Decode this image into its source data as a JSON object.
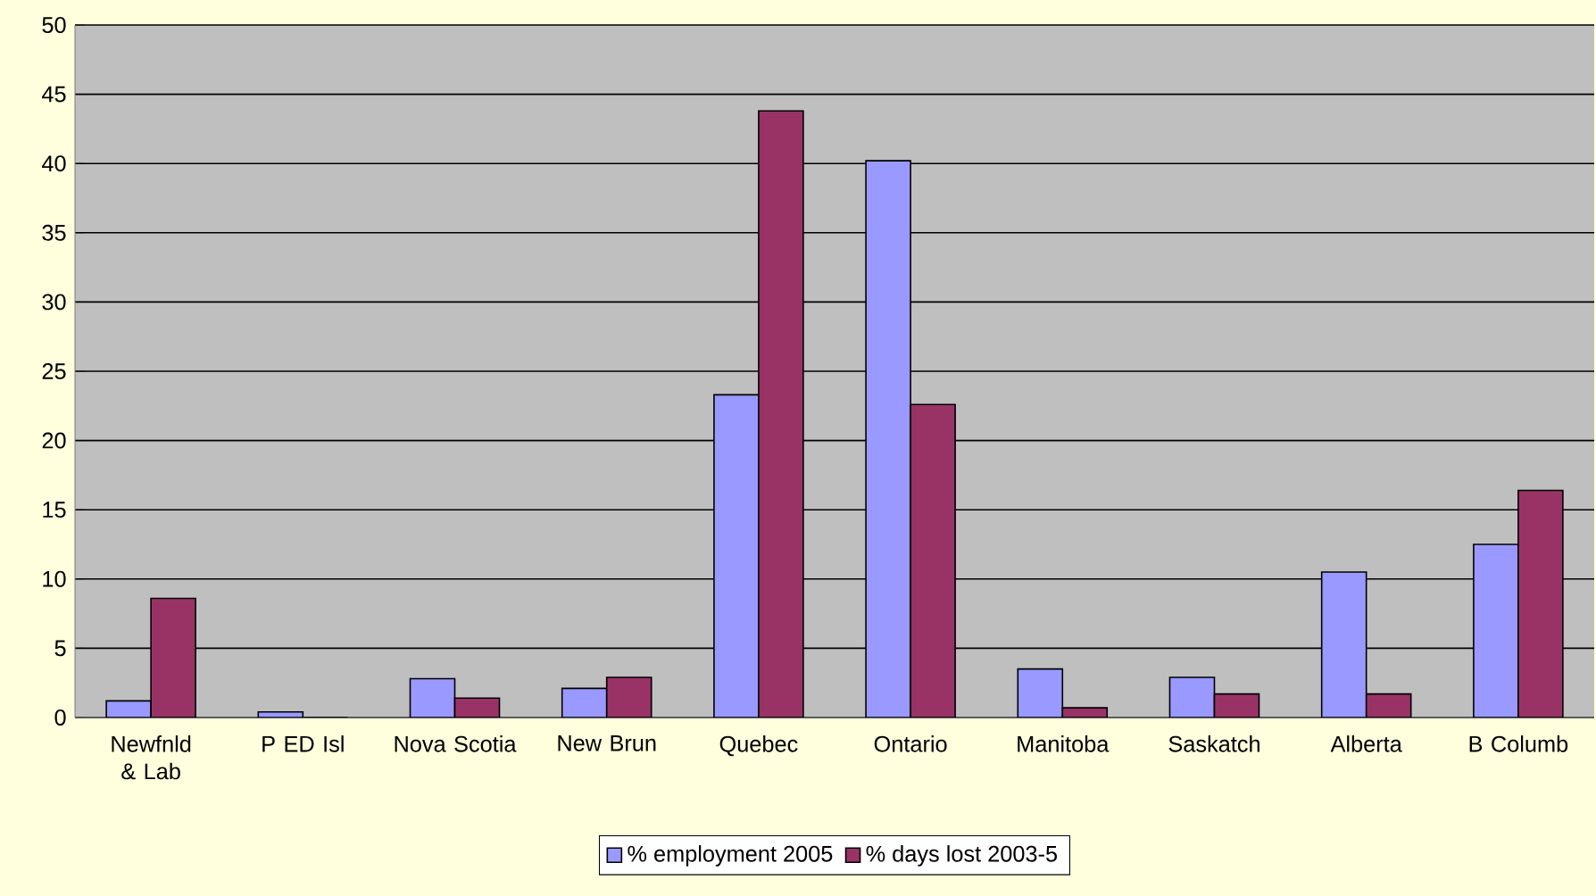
{
  "chart_data": {
    "type": "bar",
    "categories": [
      "Newfnld & Lab",
      "P ED Isl",
      "Nova Scotia",
      "New Brun",
      "Quebec",
      "Ontario",
      "Manitoba",
      "Saskatch",
      "Alberta",
      "B Columb"
    ],
    "series": [
      {
        "name": "% employment 2005",
        "color": "#9999ff",
        "values": [
          1.2,
          0.4,
          2.8,
          2.1,
          23.3,
          40.2,
          3.5,
          2.9,
          10.5,
          12.5
        ]
      },
      {
        "name": "% days lost 2003-5",
        "color": "#993366",
        "values": [
          8.6,
          0,
          1.4,
          2.9,
          43.8,
          22.6,
          0.7,
          1.7,
          1.7,
          16.4
        ]
      }
    ],
    "ylim": [
      0,
      50
    ],
    "yticks": [
      0,
      5,
      10,
      15,
      20,
      25,
      30,
      35,
      40,
      45,
      50
    ],
    "grid": true,
    "legend": "bottom"
  }
}
